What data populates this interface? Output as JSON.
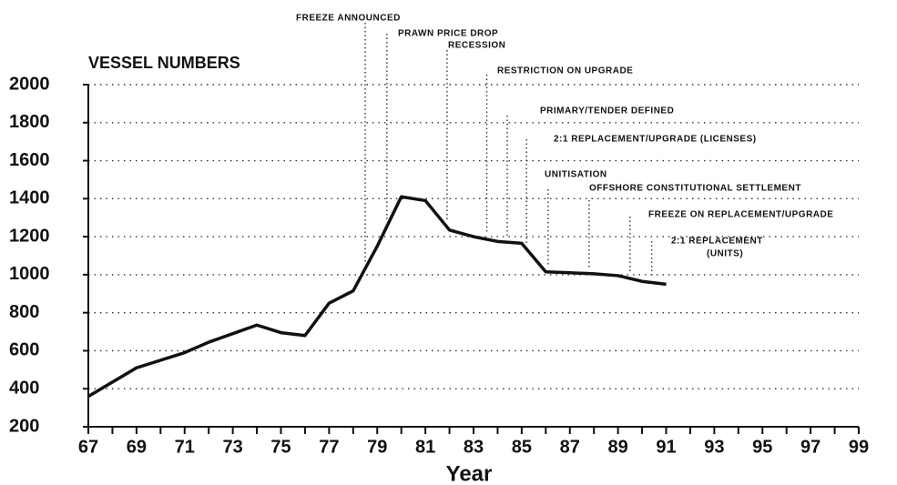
{
  "chart_data": {
    "type": "line",
    "title": "VESSEL NUMBERS",
    "x_label": "Year",
    "x": [
      67,
      69,
      71,
      72,
      74,
      75,
      76,
      77,
      78,
      79,
      80,
      81,
      82,
      83,
      84,
      85,
      86,
      87,
      88,
      89,
      90,
      91
    ],
    "series": [
      {
        "name": "Vessel numbers",
        "color": "#111111",
        "values": [
          360,
          510,
          590,
          645,
          735,
          695,
          680,
          850,
          915,
          1150,
          1410,
          1390,
          1235,
          1200,
          1175,
          1165,
          1015,
          1010,
          1005,
          995,
          965,
          950
        ]
      }
    ],
    "xlim": [
      67,
      99
    ],
    "xticks": [
      67,
      69,
      71,
      73,
      75,
      77,
      79,
      81,
      83,
      85,
      87,
      89,
      91,
      93,
      95,
      97,
      99
    ],
    "ylim": [
      200,
      2000
    ],
    "yticks": [
      200,
      400,
      600,
      800,
      1000,
      1200,
      1400,
      1600,
      1800,
      2000
    ],
    "grid": true,
    "annotations": [
      {
        "x": 78.5,
        "lines": [
          "FREEZE ANNOUNCED"
        ]
      },
      {
        "x": 79.4,
        "lines": [
          "PRAWN PRICE DROP"
        ]
      },
      {
        "x": 81.9,
        "lines": [
          "RECESSION"
        ]
      },
      {
        "x": 83.55,
        "lines": [
          "RESTRICTION ON UPGRADE"
        ]
      },
      {
        "x": 84.4,
        "lines": [
          "PRIMARY/TENDER DEFINED"
        ]
      },
      {
        "x": 85.2,
        "lines": [
          "2:1 REPLACEMENT/UPGRADE (LICENSES)"
        ]
      },
      {
        "x": 86.1,
        "lines": [
          "UNITISATION"
        ]
      },
      {
        "x": 87.8,
        "lines": [
          "OFFSHORE CONSTITUTIONAL SETTLEMENT"
        ]
      },
      {
        "x": 89.5,
        "lines": [
          "FREEZE ON REPLACEMENT/UPGRADE"
        ]
      },
      {
        "x": 90.4,
        "lines": [
          "2:1 REPLACEMENT",
          "(UNITS)"
        ]
      }
    ]
  }
}
